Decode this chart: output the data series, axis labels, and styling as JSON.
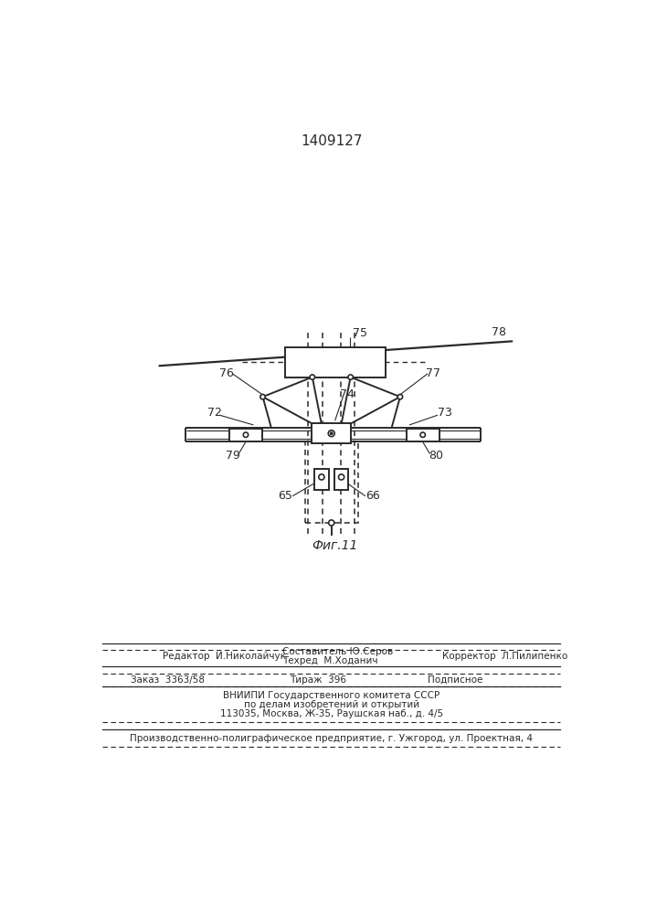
{
  "title_number": "1409127",
  "fig_label": "Фиг.11",
  "bg_color": "#ffffff",
  "line_color": "#2a2a2a",
  "footer_bottom": "Производственно-полиграфическое предприятие, г. Ужгород, ул. Проектная, 4"
}
